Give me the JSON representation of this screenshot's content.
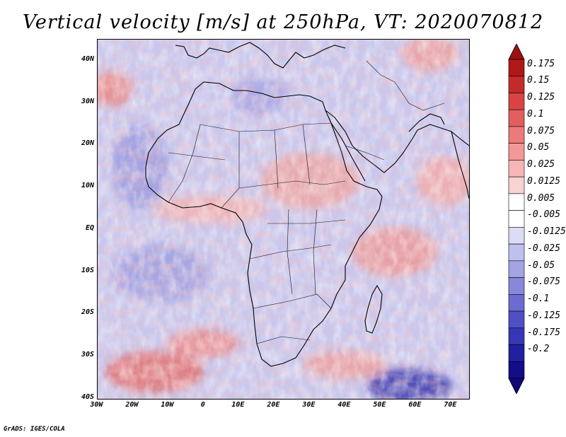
{
  "title": "Vertical velocity [m/s] at 250hPa, VT: 2020070812",
  "footer": "GrADS: IGES/COLA",
  "lat_labels": [
    "40N",
    "30N",
    "20N",
    "10N",
    "EQ",
    "10S",
    "20S",
    "30S",
    "40S"
  ],
  "lat_values": [
    40,
    30,
    20,
    10,
    0,
    -10,
    -20,
    -30,
    -40
  ],
  "lon_labels": [
    "30W",
    "20W",
    "10W",
    "0",
    "10E",
    "20E",
    "30E",
    "40E",
    "50E",
    "60E",
    "70E"
  ],
  "lon_values": [
    -30,
    -20,
    -10,
    0,
    10,
    20,
    30,
    40,
    50,
    60,
    70
  ],
  "colorbar": {
    "labels": [
      "0.175",
      "0.15",
      "0.125",
      "0.1",
      "0.075",
      "0.05",
      "0.025",
      "0.0125",
      "0.005",
      "-0.005",
      "-0.0125",
      "-0.025",
      "-0.05",
      "-0.075",
      "-0.1",
      "-0.125",
      "-0.175",
      "-0.2"
    ],
    "colors": [
      "#b01818",
      "#c42a2a",
      "#d84444",
      "#e35e5e",
      "#ec7a7a",
      "#f29898",
      "#f6b6b6",
      "#f9d2d2",
      "#ffffff",
      "#ffffff",
      "#dcdcf6",
      "#c0c0ee",
      "#a4a4e4",
      "#8888da",
      "#6c6cd0",
      "#5050c4",
      "#3636b6",
      "#2020a0",
      "#140c88"
    ],
    "top_arrow_color": "#9c1010",
    "bottom_arrow_color": "#100878"
  },
  "map_background": "#c8c8ee"
}
